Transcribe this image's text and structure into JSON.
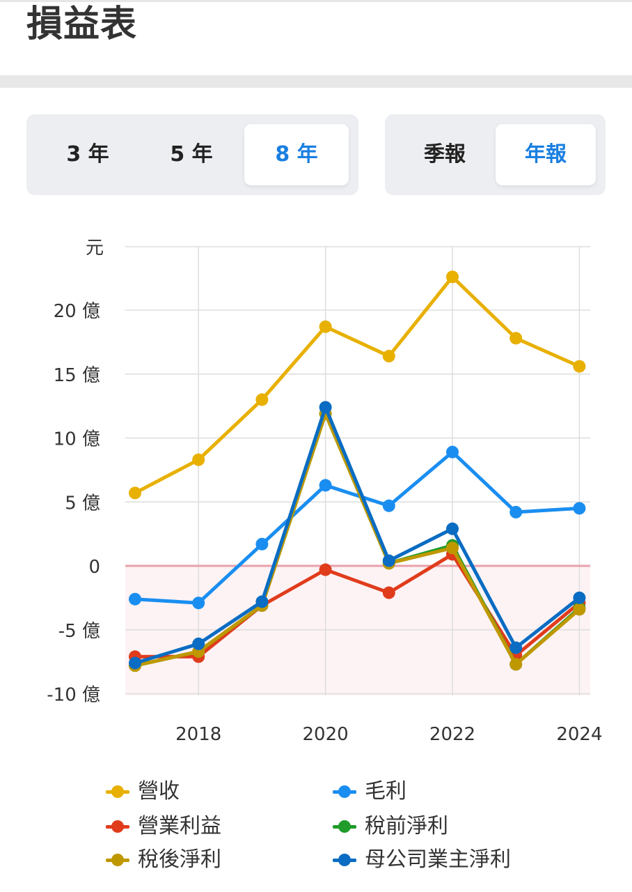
{
  "header": {
    "title": "損益表"
  },
  "period_filter": {
    "options": [
      "3 年",
      "5 年",
      "8 年"
    ],
    "selected": "8 年"
  },
  "report_type": {
    "options": [
      "季報",
      "年報"
    ],
    "selected": "年報"
  },
  "chart_data": {
    "type": "line",
    "y_unit_label": "元",
    "ylim": [
      -10,
      24
    ],
    "y_ticks": [
      20,
      15,
      10,
      5,
      0,
      -5,
      -10
    ],
    "y_tick_labels": [
      "20 億",
      "15 億",
      "10 億",
      "5 億",
      "0",
      "-5 億",
      "-10 億"
    ],
    "x": [
      2017,
      2018,
      2019,
      2020,
      2021,
      2022,
      2023,
      2024
    ],
    "x_tick_values": [
      2018,
      2020,
      2022,
      2024
    ],
    "x_tick_labels": [
      "2018",
      "2020",
      "2022",
      "2024"
    ],
    "grid": true,
    "legend_position": "bottom",
    "series": [
      {
        "name": "營收",
        "color": "#e8b000",
        "values": [
          5.7,
          8.3,
          13.0,
          18.7,
          16.4,
          22.6,
          17.8,
          15.6
        ]
      },
      {
        "name": "毛利",
        "color": "#1a8ef0",
        "values": [
          -2.6,
          -2.9,
          1.7,
          6.3,
          4.7,
          8.9,
          4.2,
          4.5
        ]
      },
      {
        "name": "營業利益",
        "color": "#e03c1c",
        "values": [
          -7.1,
          -7.1,
          -3.1,
          -0.3,
          -2.1,
          0.9,
          -7.0,
          -2.9
        ]
      },
      {
        "name": "稅前淨利",
        "color": "#1f9c2a",
        "values": [
          -7.8,
          -6.7,
          -3.1,
          11.9,
          0.2,
          1.6,
          -7.7,
          -3.3
        ]
      },
      {
        "name": "稅後淨利",
        "color": "#bf9800",
        "values": [
          -7.8,
          -6.7,
          -3.1,
          11.9,
          0.2,
          1.4,
          -7.7,
          -3.4
        ]
      },
      {
        "name": "母公司業主淨利",
        "color": "#0a6cc2",
        "values": [
          -7.6,
          -6.1,
          -2.8,
          12.4,
          0.4,
          2.9,
          -6.4,
          -2.5
        ]
      }
    ]
  }
}
